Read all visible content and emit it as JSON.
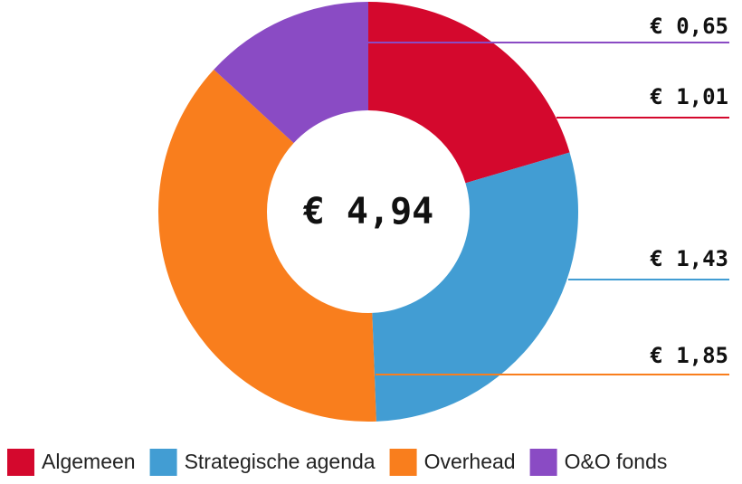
{
  "chart_data": {
    "type": "donut",
    "center_label": "€ 4,94",
    "categories": [
      "Algemeen",
      "Strategische agenda",
      "Overhead",
      "O&O fonds"
    ],
    "values": [
      1.01,
      1.43,
      1.85,
      0.65
    ],
    "value_labels": [
      "€ 1,01",
      "€ 1,43",
      "€ 1,85",
      "€ 0,65"
    ],
    "colors": [
      "#d4082d",
      "#429dd3",
      "#f97e1d",
      "#8a4bc4"
    ],
    "legend": "bottom"
  }
}
